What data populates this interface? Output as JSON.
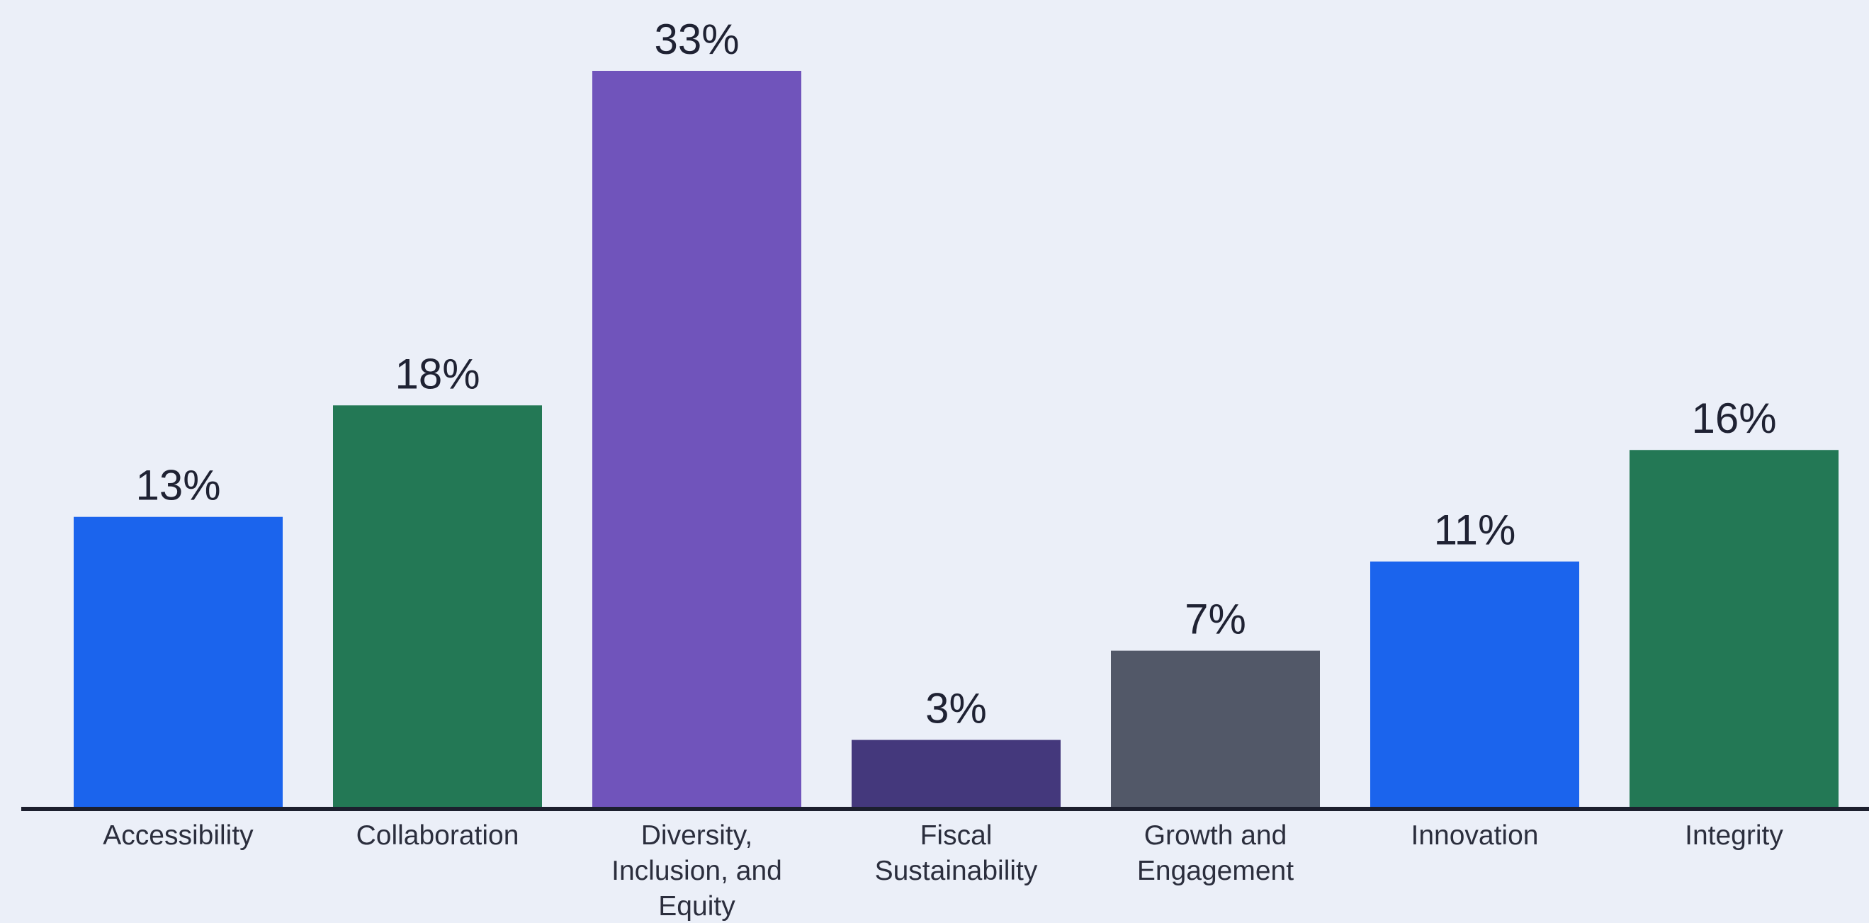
{
  "chart_data": {
    "type": "bar",
    "title": "",
    "xlabel": "",
    "ylabel": "",
    "ylim": [
      0,
      34
    ],
    "grid": false,
    "legend": "none",
    "categories": [
      [
        "Accessibility"
      ],
      [
        "Collaboration"
      ],
      [
        "Diversity,",
        "Inclusion, and",
        "Equity"
      ],
      [
        "Fiscal",
        "Sustainability"
      ],
      [
        "Growth and",
        "Engagement"
      ],
      [
        "Innovation"
      ],
      [
        "Integrity"
      ]
    ],
    "values": [
      13,
      18,
      33,
      3,
      7,
      11,
      16
    ],
    "value_labels": [
      "13%",
      "18%",
      "33%",
      "3%",
      "7%",
      "11%",
      "16%"
    ],
    "bar_colors": [
      "#1b64ed",
      "#237855",
      "#7054bb",
      "#44387c",
      "#525868",
      "#1b64ed",
      "#237855"
    ],
    "axis_color": "#1c1f2e"
  }
}
